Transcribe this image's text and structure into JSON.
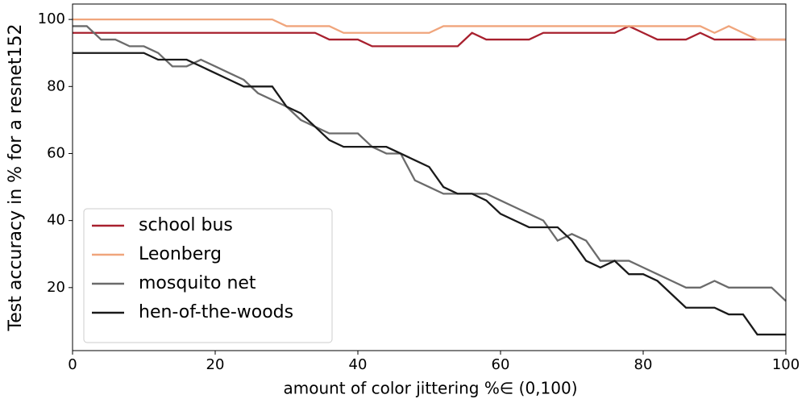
{
  "chart_data": {
    "type": "line",
    "xlabel": "amount of color jittering %∈ (0,100)",
    "ylabel": "Test accuracy in % for a resnet152",
    "x": [
      0,
      2,
      4,
      6,
      8,
      10,
      12,
      14,
      16,
      18,
      20,
      22,
      24,
      26,
      28,
      30,
      32,
      34,
      36,
      38,
      40,
      42,
      44,
      46,
      48,
      50,
      52,
      54,
      56,
      58,
      60,
      62,
      64,
      66,
      68,
      70,
      72,
      74,
      76,
      78,
      80,
      82,
      84,
      86,
      88,
      90,
      92,
      94,
      96,
      98,
      100
    ],
    "series": [
      {
        "name": "school bus",
        "color": "#a8202e",
        "values": [
          96,
          96,
          96,
          96,
          96,
          96,
          96,
          96,
          96,
          96,
          96,
          96,
          96,
          96,
          96,
          96,
          96,
          96,
          94,
          94,
          94,
          92,
          92,
          92,
          92,
          92,
          92,
          92,
          96,
          94,
          94,
          94,
          94,
          96,
          96,
          96,
          96,
          96,
          96,
          98,
          96,
          94,
          94,
          94,
          96,
          94,
          94,
          94,
          94,
          94,
          94
        ]
      },
      {
        "name": "Leonberg",
        "color": "#f0a57c",
        "values": [
          100,
          100,
          100,
          100,
          100,
          100,
          100,
          100,
          100,
          100,
          100,
          100,
          100,
          100,
          100,
          98,
          98,
          98,
          98,
          96,
          96,
          96,
          96,
          96,
          96,
          96,
          98,
          98,
          98,
          98,
          98,
          98,
          98,
          98,
          98,
          98,
          98,
          98,
          98,
          98,
          98,
          98,
          98,
          98,
          98,
          96,
          98,
          96,
          94,
          94,
          94
        ]
      },
      {
        "name": "mosquito net",
        "color": "#6b6b6b",
        "values": [
          98,
          98,
          94,
          94,
          92,
          92,
          90,
          86,
          86,
          88,
          86,
          84,
          82,
          78,
          76,
          74,
          70,
          68,
          66,
          66,
          66,
          62,
          60,
          60,
          52,
          50,
          48,
          48,
          48,
          48,
          46,
          44,
          42,
          40,
          34,
          36,
          34,
          28,
          28,
          28,
          26,
          24,
          22,
          20,
          20,
          22,
          20,
          20,
          20,
          20,
          16
        ]
      },
      {
        "name": "hen-of-the-woods",
        "color": "#1a1a1a",
        "values": [
          90,
          90,
          90,
          90,
          90,
          90,
          88,
          88,
          88,
          86,
          84,
          82,
          80,
          80,
          80,
          74,
          72,
          68,
          64,
          62,
          62,
          62,
          62,
          60,
          58,
          56,
          50,
          48,
          48,
          46,
          42,
          40,
          38,
          38,
          38,
          34,
          28,
          26,
          28,
          24,
          24,
          22,
          18,
          14,
          14,
          14,
          12,
          12,
          6,
          6,
          6
        ]
      }
    ],
    "xlim": [
      0,
      100
    ],
    "xticks": [
      0,
      20,
      40,
      60,
      80,
      100
    ],
    "ylim": [
      1.2,
      104.6
    ],
    "yticks": [
      20,
      40,
      60,
      80,
      100
    ],
    "grid": false,
    "legend": "lower left"
  }
}
